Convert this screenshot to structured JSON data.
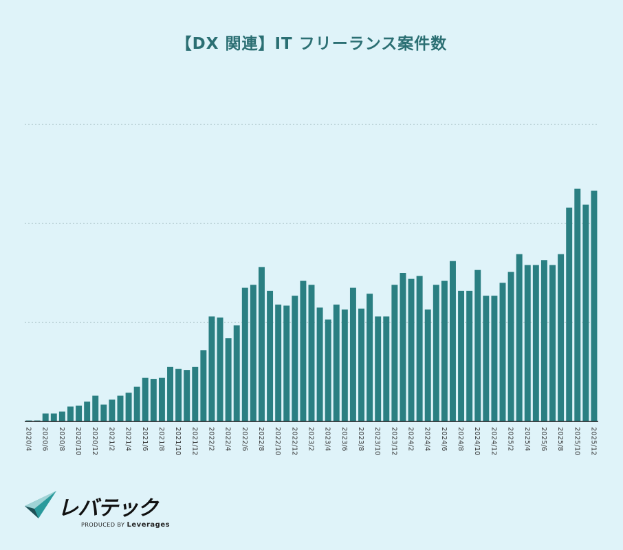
{
  "chart_data": {
    "type": "bar",
    "title": "【DX 関連】IT フリーランス案件数",
    "xlabel": "",
    "ylabel": "",
    "ylim": [
      0,
      3
    ],
    "grid": true,
    "y_tick_labels_shown": false,
    "colors": {
      "bar": "#2a7f82",
      "background": "#dff3f9",
      "title": "#2b6f73",
      "grid": "#9fb8bd"
    },
    "categories": [
      "2020/4",
      "2020/5",
      "2020/6",
      "2020/7",
      "2020/8",
      "2020/9",
      "2020/10",
      "2020/11",
      "2020/12",
      "2021/1",
      "2021/2",
      "2021/3",
      "2021/4",
      "2021/5",
      "2021/6",
      "2021/7",
      "2021/8",
      "2021/9",
      "2021/10",
      "2021/11",
      "2021/12",
      "2022/1",
      "2022/2",
      "2022/3",
      "2022/4",
      "2022/5",
      "2022/6",
      "2022/7",
      "2022/8",
      "2022/9",
      "2022/10",
      "2022/11",
      "2022/12",
      "2023/1",
      "2023/2",
      "2023/3",
      "2023/4",
      "2023/5",
      "2023/6",
      "2023/7",
      "2023/8",
      "2023/9",
      "2023/10",
      "2023/11",
      "2023/12",
      "2024/1",
      "2024/2",
      "2024/3",
      "2024/4",
      "2024/5",
      "2024/6",
      "2024/7",
      "2024/8",
      "2024/9",
      "2024/10",
      "2024/11",
      "2024/12",
      "2025/1",
      "2025/2",
      "2025/3",
      "2025/4",
      "2025/5",
      "2025/6",
      "2025/7",
      "2025/8",
      "2025/9",
      "2025/10",
      "2025/11",
      "2025/12"
    ],
    "tick_labels": [
      "2020/4",
      "2020/6",
      "2020/8",
      "2020/10",
      "2020/12",
      "2021/2",
      "2021/4",
      "2021/6",
      "2021/8",
      "2021/10",
      "2021/12",
      "2022/2",
      "2022/4",
      "2022/6",
      "2022/8",
      "2022/10",
      "2022/12",
      "2023/2",
      "2023/4",
      "2023/6",
      "2023/8",
      "2023/10",
      "2023/12",
      "2024/2",
      "2024/4",
      "2024/6",
      "2024/8",
      "2024/10",
      "2024/12",
      "2025/2",
      "2025/4",
      "2025/6",
      "2025/8",
      "2025/10",
      "2025/12"
    ],
    "values": [
      0.01,
      0.01,
      0.08,
      0.08,
      0.1,
      0.15,
      0.16,
      0.2,
      0.26,
      0.17,
      0.22,
      0.26,
      0.29,
      0.35,
      0.44,
      0.43,
      0.44,
      0.55,
      0.53,
      0.52,
      0.55,
      0.72,
      1.06,
      1.05,
      0.84,
      0.97,
      1.35,
      1.38,
      1.56,
      1.32,
      1.18,
      1.17,
      1.27,
      1.42,
      1.38,
      1.15,
      1.03,
      1.18,
      1.13,
      1.35,
      1.14,
      1.29,
      1.06,
      1.06,
      1.38,
      1.5,
      1.44,
      1.47,
      1.13,
      1.38,
      1.42,
      1.62,
      1.32,
      1.32,
      1.53,
      1.27,
      1.27,
      1.4,
      1.51,
      1.69,
      1.58,
      1.58,
      1.63,
      1.58,
      1.69,
      2.16,
      2.35,
      2.19,
      2.33
    ]
  },
  "logo": {
    "brand": "レバテック",
    "produced_by": "PRODUCED BY",
    "company": "Leverages"
  }
}
